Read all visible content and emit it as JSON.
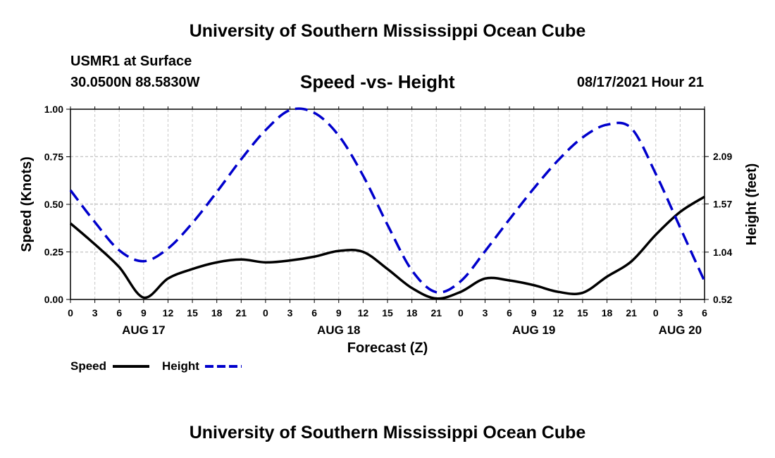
{
  "header": {
    "title": "University of Southern Mississippi Ocean Cube",
    "station": "USMR1 at Surface",
    "coords": "30.0500N  88.5830W",
    "chart_title": "Speed -vs- Height",
    "datetime": "08/17/2021 Hour 21"
  },
  "footer": {
    "title": "University of Southern Mississippi Ocean Cube"
  },
  "legend": {
    "speed_label": "Speed",
    "height_label": "Height"
  },
  "colors": {
    "speed": "#000000",
    "height": "#0000cc",
    "grid": "#c8c8c8"
  },
  "chart_data": {
    "type": "line",
    "title": "Speed -vs- Height",
    "xlabel": "Forecast (Z)",
    "ylabel_left": "Speed (Knots)",
    "ylabel_right": "Height (feet)",
    "x_hours_from_start": [
      0,
      3,
      6,
      9,
      12,
      15,
      18,
      21,
      24,
      27,
      30,
      33,
      36,
      39,
      42,
      45,
      48,
      51,
      54,
      57,
      60,
      63,
      66,
      69,
      72,
      75,
      78
    ],
    "x_tick_labels": [
      "0",
      "3",
      "6",
      "9",
      "12",
      "15",
      "18",
      "21",
      "0",
      "3",
      "6",
      "9",
      "12",
      "15",
      "18",
      "21",
      "0",
      "3",
      "6",
      "9",
      "12",
      "15",
      "18",
      "21",
      "0",
      "3",
      "6"
    ],
    "date_labels": [
      {
        "label": "AUG 17",
        "hour": 9
      },
      {
        "label": "AUG 18",
        "hour": 33
      },
      {
        "label": "AUG 19",
        "hour": 57
      },
      {
        "label": "AUG 20",
        "hour": 75
      }
    ],
    "xlim": [
      0,
      78
    ],
    "ylim_left": [
      0,
      1
    ],
    "yticks_left": [
      "0.00",
      "0.25",
      "0.50",
      "0.75",
      "1.00"
    ],
    "ylim_right": [
      0.52,
      2.61
    ],
    "yticks_right": [
      "0.52",
      "1.04",
      "1.57",
      "2.09"
    ],
    "series": [
      {
        "name": "Speed",
        "axis": "left",
        "style": "solid",
        "x": [
          0,
          3,
          6,
          9,
          12,
          15,
          18,
          21,
          24,
          27,
          30,
          33,
          36,
          39,
          42,
          45,
          48,
          51,
          54,
          57,
          60,
          63,
          66,
          69,
          72,
          75,
          78
        ],
        "values": [
          0.4,
          0.29,
          0.17,
          0.01,
          0.11,
          0.16,
          0.195,
          0.21,
          0.195,
          0.205,
          0.225,
          0.255,
          0.25,
          0.16,
          0.06,
          0.005,
          0.04,
          0.11,
          0.1,
          0.075,
          0.04,
          0.035,
          0.12,
          0.2,
          0.34,
          0.46,
          0.54
        ]
      },
      {
        "name": "Height",
        "axis": "right",
        "style": "dashed",
        "x": [
          0,
          3,
          6,
          9,
          12,
          15,
          18,
          21,
          24,
          27,
          30,
          33,
          36,
          39,
          42,
          45,
          48,
          51,
          54,
          57,
          60,
          63,
          66,
          69,
          72,
          75,
          78
        ],
        "values": [
          1.72,
          1.37,
          1.06,
          0.94,
          1.08,
          1.36,
          1.7,
          2.06,
          2.38,
          2.6,
          2.57,
          2.32,
          1.88,
          1.34,
          0.84,
          0.6,
          0.72,
          1.05,
          1.4,
          1.74,
          2.05,
          2.3,
          2.44,
          2.4,
          1.9,
          1.31,
          0.72
        ]
      }
    ]
  }
}
